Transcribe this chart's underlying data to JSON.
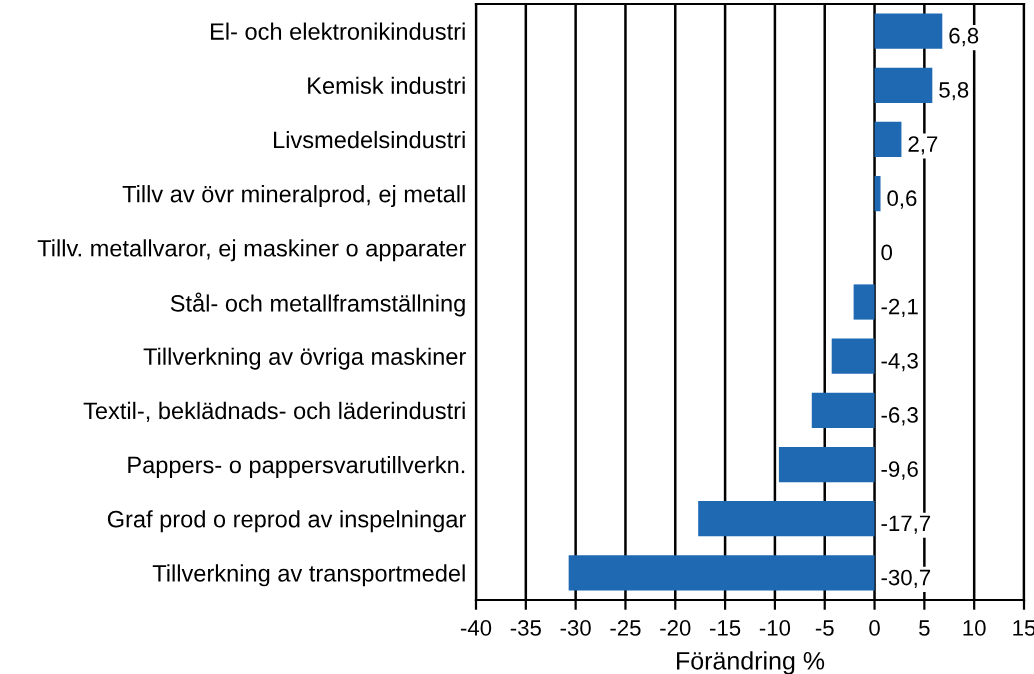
{
  "chart_data": {
    "type": "bar",
    "orientation": "horizontal",
    "xlabel": "Förändring %",
    "categories": [
      "El- och elektronikindustri",
      "Kemisk industri",
      "Livsmedelsindustri",
      "Tillv av övr mineralprod, ej metall",
      "Tillv. metallvaror, ej maskiner o apparater",
      "Stål- och metallframställning",
      "Tillverkning av övriga maskiner",
      "Textil-, beklädnads- och läderindustri",
      "Pappers- o pappersvarutillverkn.",
      "Graf prod o reprod av inspelningar",
      "Tillverkning av transportmedel"
    ],
    "values": [
      6.8,
      5.8,
      2.7,
      0.6,
      0,
      -2.1,
      -4.3,
      -6.3,
      -9.6,
      -17.7,
      -30.7
    ],
    "value_labels": [
      "6,8",
      "5,8",
      "2,7",
      "0,6",
      "0",
      "-2,1",
      "-4,3",
      "-6,3",
      "-9,6",
      "-17,7",
      "-30,7"
    ],
    "color": "#1f69b3",
    "xlim": [
      -40,
      15
    ],
    "xticks": [
      -40,
      -35,
      -30,
      -25,
      -20,
      -15,
      -10,
      -5,
      0,
      5,
      10,
      15
    ],
    "grid": "x",
    "legend": false
  }
}
